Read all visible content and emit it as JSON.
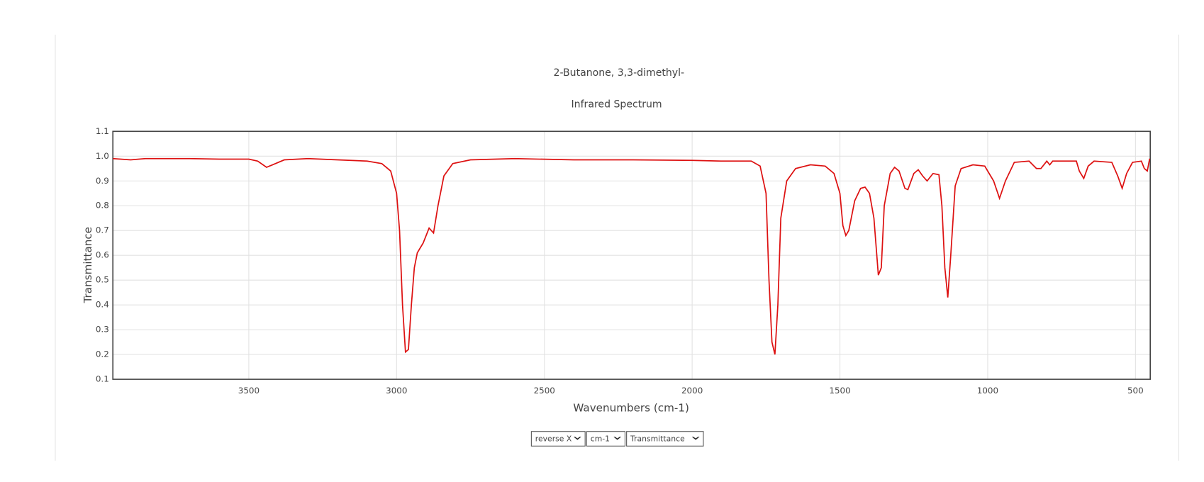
{
  "chart_data": {
    "type": "line",
    "title": "2-Butanone, 3,3-dimethyl-",
    "subtitle": "Infrared Spectrum",
    "x_label": "Wavenumbers (cm-1)",
    "y_label": "Transmittance",
    "xlim": [
      3960,
      450
    ],
    "ylim": [
      0.1,
      1.1
    ],
    "xticks": [
      3500,
      3000,
      2500,
      2000,
      1500,
      1000,
      500
    ],
    "yticks": [
      0.1,
      0.2,
      0.3,
      0.4,
      0.5,
      0.6,
      0.7,
      0.8,
      0.9,
      {
        "value": 1,
        "label": "1.0"
      },
      1.1
    ],
    "grid": true,
    "x": [
      3960,
      3900,
      3850,
      3800,
      3700,
      3600,
      3500,
      3470,
      3440,
      3420,
      3380,
      3300,
      3200,
      3100,
      3050,
      3020,
      3000,
      2990,
      2980,
      2970,
      2960,
      2950,
      2940,
      2930,
      2910,
      2890,
      2875,
      2860,
      2840,
      2810,
      2750,
      2600,
      2400,
      2200,
      2000,
      1900,
      1800,
      1770,
      1750,
      1740,
      1730,
      1720,
      1710,
      1700,
      1680,
      1650,
      1600,
      1550,
      1520,
      1500,
      1490,
      1480,
      1470,
      1450,
      1430,
      1415,
      1400,
      1385,
      1370,
      1360,
      1350,
      1330,
      1315,
      1300,
      1280,
      1270,
      1250,
      1235,
      1220,
      1205,
      1185,
      1165,
      1155,
      1145,
      1135,
      1125,
      1110,
      1090,
      1050,
      1010,
      980,
      960,
      940,
      910,
      860,
      835,
      820,
      800,
      790,
      780,
      700,
      690,
      675,
      660,
      640,
      580,
      560,
      545,
      530,
      510,
      480,
      470,
      460,
      452
    ],
    "series": [
      {
        "name": "Transmittance",
        "color": "#dd1111",
        "values": [
          0.99,
          0.985,
          0.99,
          0.99,
          0.99,
          0.988,
          0.988,
          0.98,
          0.955,
          0.965,
          0.985,
          0.99,
          0.985,
          0.98,
          0.97,
          0.94,
          0.85,
          0.7,
          0.4,
          0.21,
          0.22,
          0.4,
          0.55,
          0.61,
          0.65,
          0.71,
          0.69,
          0.8,
          0.92,
          0.97,
          0.985,
          0.99,
          0.985,
          0.985,
          0.983,
          0.98,
          0.98,
          0.96,
          0.85,
          0.5,
          0.25,
          0.2,
          0.4,
          0.75,
          0.9,
          0.95,
          0.965,
          0.96,
          0.93,
          0.85,
          0.72,
          0.68,
          0.7,
          0.82,
          0.87,
          0.875,
          0.85,
          0.75,
          0.52,
          0.55,
          0.8,
          0.93,
          0.955,
          0.94,
          0.87,
          0.865,
          0.93,
          0.945,
          0.92,
          0.9,
          0.93,
          0.925,
          0.8,
          0.55,
          0.43,
          0.6,
          0.88,
          0.95,
          0.965,
          0.96,
          0.9,
          0.83,
          0.9,
          0.975,
          0.98,
          0.95,
          0.95,
          0.98,
          0.965,
          0.98,
          0.98,
          0.94,
          0.91,
          0.96,
          0.98,
          0.975,
          0.92,
          0.87,
          0.93,
          0.975,
          0.98,
          0.95,
          0.94,
          0.99
        ]
      }
    ]
  },
  "controls": [
    "reverse X",
    "cm-1",
    "Transmittance"
  ]
}
